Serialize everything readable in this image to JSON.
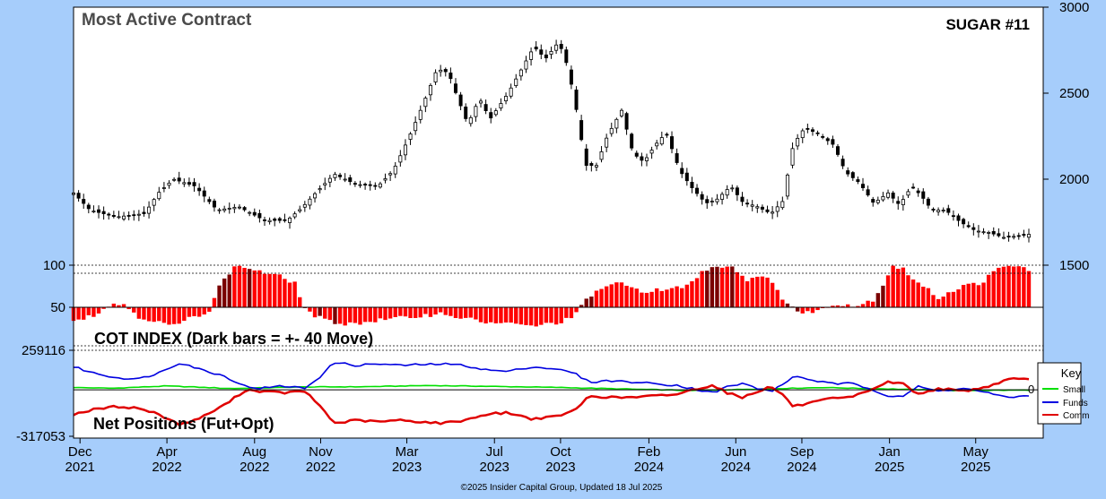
{
  "chart_data": [
    {
      "type": "candlestick",
      "title": "Most Active Contract",
      "subtitle": "SUGAR #11",
      "ylim": [
        1500,
        3000
      ],
      "right_ticks": [
        "3000",
        "2500",
        "2000",
        "1500"
      ],
      "anchors": [
        [
          "2021-11-22",
          1920
        ],
        [
          "2021-12-15",
          1820
        ],
        [
          "2022-01-20",
          1780
        ],
        [
          "2022-03-01",
          1800
        ],
        [
          "2022-03-20",
          1920
        ],
        [
          "2022-04-10",
          2000
        ],
        [
          "2022-05-10",
          1960
        ],
        [
          "2022-06-10",
          1820
        ],
        [
          "2022-07-10",
          1840
        ],
        [
          "2022-08-15",
          1760
        ],
        [
          "2022-09-15",
          1760
        ],
        [
          "2022-10-05",
          1830
        ],
        [
          "2022-10-25",
          1920
        ],
        [
          "2022-11-20",
          2030
        ],
        [
          "2022-12-20",
          1970
        ],
        [
          "2023-01-20",
          1960
        ],
        [
          "2023-02-10",
          2050
        ],
        [
          "2023-02-25",
          2180
        ],
        [
          "2023-03-10",
          2300
        ],
        [
          "2023-03-25",
          2450
        ],
        [
          "2023-04-12",
          2640
        ],
        [
          "2023-04-28",
          2620
        ],
        [
          "2023-05-10",
          2480
        ],
        [
          "2023-05-25",
          2320
        ],
        [
          "2023-06-10",
          2470
        ],
        [
          "2023-06-25",
          2350
        ],
        [
          "2023-07-20",
          2500
        ],
        [
          "2023-08-05",
          2620
        ],
        [
          "2023-08-25",
          2770
        ],
        [
          "2023-09-10",
          2700
        ],
        [
          "2023-09-25",
          2780
        ],
        [
          "2023-10-05",
          2750
        ],
        [
          "2023-10-20",
          2480
        ],
        [
          "2023-11-05",
          2080
        ],
        [
          "2023-11-20",
          2080
        ],
        [
          "2023-12-05",
          2250
        ],
        [
          "2023-12-25",
          2400
        ],
        [
          "2024-01-10",
          2150
        ],
        [
          "2024-01-25",
          2100
        ],
        [
          "2024-02-10",
          2200
        ],
        [
          "2024-02-25",
          2270
        ],
        [
          "2024-03-15",
          2050
        ],
        [
          "2024-04-01",
          1950
        ],
        [
          "2024-04-20",
          1860
        ],
        [
          "2024-05-05",
          1880
        ],
        [
          "2024-05-25",
          1960
        ],
        [
          "2024-06-10",
          1870
        ],
        [
          "2024-07-01",
          1840
        ],
        [
          "2024-07-20",
          1800
        ],
        [
          "2024-08-05",
          1870
        ],
        [
          "2024-08-20",
          2200
        ],
        [
          "2024-09-05",
          2300
        ],
        [
          "2024-09-25",
          2260
        ],
        [
          "2024-10-15",
          2200
        ],
        [
          "2024-11-01",
          2040
        ],
        [
          "2024-11-20",
          1980
        ],
        [
          "2024-12-10",
          1860
        ],
        [
          "2024-12-30",
          1920
        ],
        [
          "2025-01-15",
          1850
        ],
        [
          "2025-02-01",
          1960
        ],
        [
          "2025-02-15",
          1900
        ],
        [
          "2025-03-01",
          1820
        ],
        [
          "2025-03-20",
          1820
        ],
        [
          "2025-04-10",
          1750
        ],
        [
          "2025-05-01",
          1700
        ],
        [
          "2025-05-20",
          1690
        ],
        [
          "2025-06-10",
          1660
        ],
        [
          "2025-07-15",
          1680
        ]
      ]
    },
    {
      "type": "bar",
      "title": "COT INDEX (Dark bars = +- 40 Move)",
      "ylim": [
        0,
        100
      ],
      "left_ticks": [
        "100",
        "50"
      ],
      "anchors": [
        [
          "2021-11-22",
          33
        ],
        [
          "2021-12-20",
          40
        ],
        [
          "2022-01-10",
          52
        ],
        [
          "2022-02-01",
          54
        ],
        [
          "2022-02-20",
          38
        ],
        [
          "2022-03-20",
          30
        ],
        [
          "2022-04-10",
          25
        ],
        [
          "2022-05-10",
          38
        ],
        [
          "2022-05-30",
          46
        ],
        [
          "2022-06-10",
          70
        ],
        [
          "2022-06-25",
          90
        ],
        [
          "2022-07-10",
          100
        ],
        [
          "2022-08-10",
          92
        ],
        [
          "2022-09-10",
          85
        ],
        [
          "2022-09-25",
          80
        ],
        [
          "2022-10-10",
          50
        ],
        [
          "2022-10-20",
          40
        ],
        [
          "2022-11-15",
          30
        ],
        [
          "2022-12-15",
          28
        ],
        [
          "2023-01-15",
          32
        ],
        [
          "2023-02-15",
          35
        ],
        [
          "2023-03-15",
          38
        ],
        [
          "2023-04-20",
          42
        ],
        [
          "2023-05-20",
          35
        ],
        [
          "2023-06-20",
          30
        ],
        [
          "2023-07-20",
          28
        ],
        [
          "2023-08-20",
          25
        ],
        [
          "2023-09-20",
          28
        ],
        [
          "2023-10-15",
          35
        ],
        [
          "2023-10-25",
          45
        ],
        [
          "2023-11-10",
          62
        ],
        [
          "2023-11-30",
          75
        ],
        [
          "2023-12-20",
          78
        ],
        [
          "2024-01-20",
          70
        ],
        [
          "2024-02-20",
          70
        ],
        [
          "2024-03-10",
          72
        ],
        [
          "2024-04-01",
          80
        ],
        [
          "2024-04-20",
          95
        ],
        [
          "2024-05-10",
          100
        ],
        [
          "2024-05-30",
          98
        ],
        [
          "2024-06-15",
          82
        ],
        [
          "2024-07-10",
          90
        ],
        [
          "2024-08-01",
          65
        ],
        [
          "2024-08-15",
          54
        ],
        [
          "2024-09-01",
          40
        ],
        [
          "2024-09-15",
          45
        ],
        [
          "2024-10-01",
          48
        ],
        [
          "2024-10-20",
          55
        ],
        [
          "2024-11-20",
          52
        ],
        [
          "2024-12-10",
          60
        ],
        [
          "2024-12-20",
          72
        ],
        [
          "2025-01-05",
          100
        ],
        [
          "2025-01-20",
          95
        ],
        [
          "2025-02-15",
          75
        ],
        [
          "2025-03-10",
          62
        ],
        [
          "2025-04-10",
          74
        ],
        [
          "2025-05-10",
          80
        ],
        [
          "2025-06-01",
          95
        ],
        [
          "2025-06-20",
          100
        ],
        [
          "2025-07-15",
          95
        ]
      ],
      "dark_ranges": [
        [
          "2022-06-08",
          "2022-06-28"
        ],
        [
          "2022-07-20",
          "2022-07-31"
        ],
        [
          "2022-10-10",
          "2022-10-16"
        ],
        [
          "2022-10-28",
          "2022-11-06"
        ],
        [
          "2022-11-15",
          "2022-11-26"
        ],
        [
          "2023-10-26",
          "2023-11-16"
        ],
        [
          "2024-04-21",
          "2024-05-12"
        ],
        [
          "2024-05-24",
          "2024-06-02"
        ],
        [
          "2024-08-08",
          "2024-08-31"
        ],
        [
          "2024-12-15",
          "2024-12-28"
        ]
      ]
    },
    {
      "type": "line",
      "title": "Net Positions (Fut+Opt)",
      "ylim": [
        -317053,
        259116
      ],
      "left_ticks": [
        "259116",
        "-317053"
      ],
      "zero_label": "0",
      "series": [
        {
          "name": "Small",
          "color": "#00e000",
          "anchors": [
            [
              "2021-11-22",
              15000
            ],
            [
              "2022-01-15",
              10000
            ],
            [
              "2022-04-01",
              25000
            ],
            [
              "2022-07-01",
              8000
            ],
            [
              "2022-10-01",
              18000
            ],
            [
              "2023-01-01",
              20000
            ],
            [
              "2023-04-01",
              28000
            ],
            [
              "2023-07-01",
              22000
            ],
            [
              "2023-10-01",
              15000
            ],
            [
              "2024-01-01",
              5000
            ],
            [
              "2024-04-01",
              -5000
            ],
            [
              "2024-07-01",
              5000
            ],
            [
              "2024-10-01",
              15000
            ],
            [
              "2025-01-01",
              5000
            ],
            [
              "2025-04-01",
              -5000
            ],
            [
              "2025-07-15",
              -2000
            ]
          ]
        },
        {
          "name": "Funds",
          "color": "#0000e0",
          "anchors": [
            [
              "2021-11-22",
              150000
            ],
            [
              "2021-12-20",
              110000
            ],
            [
              "2022-01-20",
              80000
            ],
            [
              "2022-02-20",
              70000
            ],
            [
              "2022-03-20",
              110000
            ],
            [
              "2022-04-20",
              180000
            ],
            [
              "2022-05-20",
              130000
            ],
            [
              "2022-06-20",
              90000
            ],
            [
              "2022-07-20",
              20000
            ],
            [
              "2022-08-10",
              10000
            ],
            [
              "2022-09-10",
              25000
            ],
            [
              "2022-10-10",
              10000
            ],
            [
              "2022-11-01",
              90000
            ],
            [
              "2022-11-20",
              180000
            ],
            [
              "2022-12-20",
              160000
            ],
            [
              "2023-01-20",
              170000
            ],
            [
              "2023-02-20",
              160000
            ],
            [
              "2023-03-20",
              165000
            ],
            [
              "2023-04-20",
              170000
            ],
            [
              "2023-05-20",
              160000
            ],
            [
              "2023-06-20",
              130000
            ],
            [
              "2023-07-20",
              120000
            ],
            [
              "2023-08-20",
              150000
            ],
            [
              "2023-09-20",
              140000
            ],
            [
              "2023-10-20",
              110000
            ],
            [
              "2023-11-10",
              50000
            ],
            [
              "2023-12-10",
              60000
            ],
            [
              "2024-01-10",
              50000
            ],
            [
              "2024-02-10",
              40000
            ],
            [
              "2024-03-10",
              30000
            ],
            [
              "2024-04-10",
              0
            ],
            [
              "2024-05-01",
              -20000
            ],
            [
              "2024-05-20",
              20000
            ],
            [
              "2024-06-10",
              40000
            ],
            [
              "2024-07-01",
              10000
            ],
            [
              "2024-07-20",
              -10000
            ],
            [
              "2024-08-05",
              30000
            ],
            [
              "2024-08-20",
              90000
            ],
            [
              "2024-09-10",
              70000
            ],
            [
              "2024-10-10",
              40000
            ],
            [
              "2024-11-10",
              40000
            ],
            [
              "2024-12-10",
              0
            ],
            [
              "2024-12-30",
              -40000
            ],
            [
              "2025-01-20",
              -40000
            ],
            [
              "2025-02-10",
              20000
            ],
            [
              "2025-03-10",
              -10000
            ],
            [
              "2025-04-10",
              10000
            ],
            [
              "2025-05-10",
              -10000
            ],
            [
              "2025-06-10",
              -50000
            ],
            [
              "2025-07-15",
              -40000
            ]
          ]
        },
        {
          "name": "Comm",
          "color": "#e00000",
          "anchors": [
            [
              "2021-11-22",
              -160000
            ],
            [
              "2021-12-20",
              -130000
            ],
            [
              "2022-01-20",
              -110000
            ],
            [
              "2022-02-20",
              -120000
            ],
            [
              "2022-03-20",
              -160000
            ],
            [
              "2022-04-20",
              -230000
            ],
            [
              "2022-05-20",
              -180000
            ],
            [
              "2022-06-20",
              -100000
            ],
            [
              "2022-07-20",
              0
            ],
            [
              "2022-08-10",
              -10000
            ],
            [
              "2022-09-10",
              -20000
            ],
            [
              "2022-10-10",
              -10000
            ],
            [
              "2022-11-01",
              -110000
            ],
            [
              "2022-11-20",
              -220000
            ],
            [
              "2022-12-20",
              -200000
            ],
            [
              "2023-01-20",
              -210000
            ],
            [
              "2023-02-20",
              -200000
            ],
            [
              "2023-03-20",
              -210000
            ],
            [
              "2023-04-20",
              -220000
            ],
            [
              "2023-05-20",
              -200000
            ],
            [
              "2023-06-20",
              -160000
            ],
            [
              "2023-07-20",
              -150000
            ],
            [
              "2023-08-20",
              -190000
            ],
            [
              "2023-09-20",
              -180000
            ],
            [
              "2023-10-20",
              -140000
            ],
            [
              "2023-11-10",
              -40000
            ],
            [
              "2023-12-10",
              -50000
            ],
            [
              "2024-01-10",
              -50000
            ],
            [
              "2024-02-10",
              -40000
            ],
            [
              "2024-03-10",
              -30000
            ],
            [
              "2024-04-10",
              10000
            ],
            [
              "2024-05-01",
              30000
            ],
            [
              "2024-05-20",
              -20000
            ],
            [
              "2024-06-10",
              -50000
            ],
            [
              "2024-07-01",
              -10000
            ],
            [
              "2024-07-20",
              20000
            ],
            [
              "2024-08-05",
              -30000
            ],
            [
              "2024-08-20",
              -110000
            ],
            [
              "2024-09-10",
              -90000
            ],
            [
              "2024-10-10",
              -60000
            ],
            [
              "2024-11-10",
              -50000
            ],
            [
              "2024-12-10",
              10000
            ],
            [
              "2024-12-30",
              50000
            ],
            [
              "2025-01-20",
              40000
            ],
            [
              "2025-02-10",
              -30000
            ],
            [
              "2025-03-10",
              10000
            ],
            [
              "2025-04-10",
              -10000
            ],
            [
              "2025-05-10",
              10000
            ],
            [
              "2025-06-10",
              60000
            ],
            [
              "2025-06-25",
              80000
            ],
            [
              "2025-07-15",
              65000
            ]
          ]
        }
      ]
    }
  ],
  "x_axis": {
    "start": "2021-11-22",
    "end": "2025-08-03",
    "ticks": [
      {
        "m": "Dec",
        "y": "2021",
        "d": "2021-12-01"
      },
      {
        "m": "Apr",
        "y": "2022",
        "d": "2022-04-01"
      },
      {
        "m": "Aug",
        "y": "2022",
        "d": "2022-08-01"
      },
      {
        "m": "Nov",
        "y": "2022",
        "d": "2022-11-01"
      },
      {
        "m": "Mar",
        "y": "2023",
        "d": "2023-03-01"
      },
      {
        "m": "Jul",
        "y": "2023",
        "d": "2023-07-01"
      },
      {
        "m": "Oct",
        "y": "2023",
        "d": "2023-10-01"
      },
      {
        "m": "Feb",
        "y": "2024",
        "d": "2024-02-01"
      },
      {
        "m": "Jun",
        "y": "2024",
        "d": "2024-06-01"
      },
      {
        "m": "Sep",
        "y": "2024",
        "d": "2024-09-01"
      },
      {
        "m": "Jan",
        "y": "2025",
        "d": "2025-01-01"
      },
      {
        "m": "May",
        "y": "2025",
        "d": "2025-05-01"
      }
    ]
  },
  "key": {
    "title": "Key",
    "items": [
      {
        "label": "Small",
        "color": "#00e000"
      },
      {
        "label": "Funds",
        "color": "#0000e0"
      },
      {
        "label": "Comm",
        "color": "#e00000"
      }
    ]
  },
  "footer": "©2025 Insider Capital Group, Updated 18 Jul 2025"
}
